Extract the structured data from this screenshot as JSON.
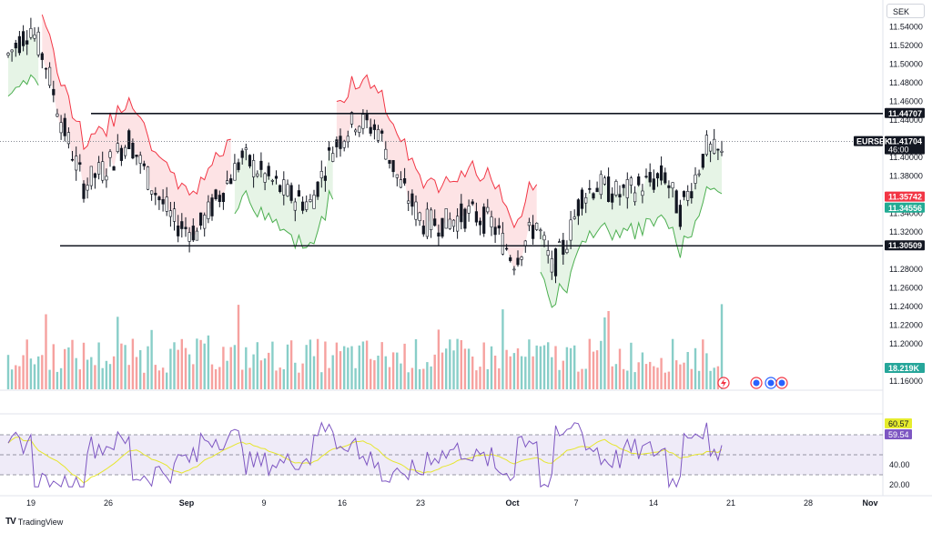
{
  "header": {
    "currency": "SEK"
  },
  "branding": {
    "logo": "TV",
    "name": "TradingView"
  },
  "chart_data": {
    "type": "candlestick",
    "symbol": "EURSEK",
    "price_axis": {
      "ticks": [
        "11.54000",
        "11.52000",
        "11.50000",
        "11.48000",
        "11.46000",
        "11.44000",
        "11.40000",
        "11.38000",
        "11.34000",
        "11.32000",
        "11.28000",
        "11.26000",
        "11.24000",
        "11.22000",
        "11.20000",
        "11.16000"
      ],
      "range": [
        11.155,
        11.565
      ]
    },
    "time_axis": {
      "labels": [
        {
          "text": "19",
          "bold": false
        },
        {
          "text": "26",
          "bold": false
        },
        {
          "text": "Sep",
          "bold": true
        },
        {
          "text": "9",
          "bold": false
        },
        {
          "text": "16",
          "bold": false
        },
        {
          "text": "23",
          "bold": false
        },
        {
          "text": "Oct",
          "bold": true
        },
        {
          "text": "7",
          "bold": false
        },
        {
          "text": "14",
          "bold": false
        },
        {
          "text": "21",
          "bold": false
        },
        {
          "text": "28",
          "bold": false
        },
        {
          "text": "Nov",
          "bold": true
        }
      ]
    },
    "horizontal_lines": [
      11.44707,
      11.30509
    ],
    "last_price": 11.41704,
    "price_tags": [
      {
        "label": "",
        "value": "11.44707",
        "bg": "#131722",
        "fg": "#ffffff"
      },
      {
        "label": "EURSEK",
        "value": "11.41704",
        "sub": "46:00",
        "bg": "#131722",
        "fg": "#ffffff"
      },
      {
        "label": "",
        "value": "11.35742",
        "bg": "#f23645",
        "fg": "#ffffff"
      },
      {
        "label": "",
        "value": "11.34556",
        "bg": "#22ab94",
        "fg": "#ffffff"
      },
      {
        "label": "",
        "value": "11.30509",
        "bg": "#131722",
        "fg": "#ffffff"
      }
    ],
    "volume": {
      "last_label": "18.219K",
      "up_color": "#26a69a",
      "down_color": "#ef5350"
    },
    "supertrend": {
      "up_color": "#4caf50",
      "down_color": "#f23645"
    },
    "rsi": {
      "ticks": [
        "40.00",
        "20.00"
      ],
      "range": [
        10,
        90
      ],
      "bands": [
        70,
        50,
        30
      ],
      "value": "59.54",
      "ma_value": "60.57",
      "rsi_color": "#7e57c2",
      "ma_color": "#e6e62e"
    },
    "colors": {
      "up": "#26a69a",
      "down": "#ef5350",
      "wick": "#131722",
      "body": "#131722"
    }
  }
}
